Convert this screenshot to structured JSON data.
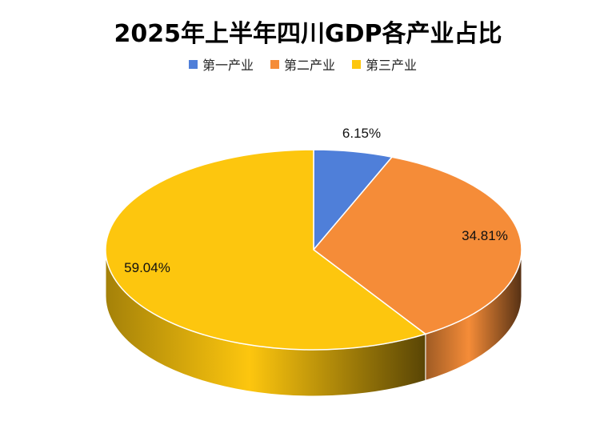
{
  "chart_data": {
    "type": "pie",
    "title": "2025年上半年四川GDP各产业占比",
    "legend_position": "top",
    "labels": [
      "第一产业",
      "第二产业",
      "第三产业"
    ],
    "values": [
      6.15,
      34.81,
      59.04
    ],
    "value_labels": [
      "6.15%",
      "34.81%",
      "59.04%"
    ],
    "colors": [
      "#4f7fd9",
      "#f58c38",
      "#fdc60e"
    ]
  }
}
